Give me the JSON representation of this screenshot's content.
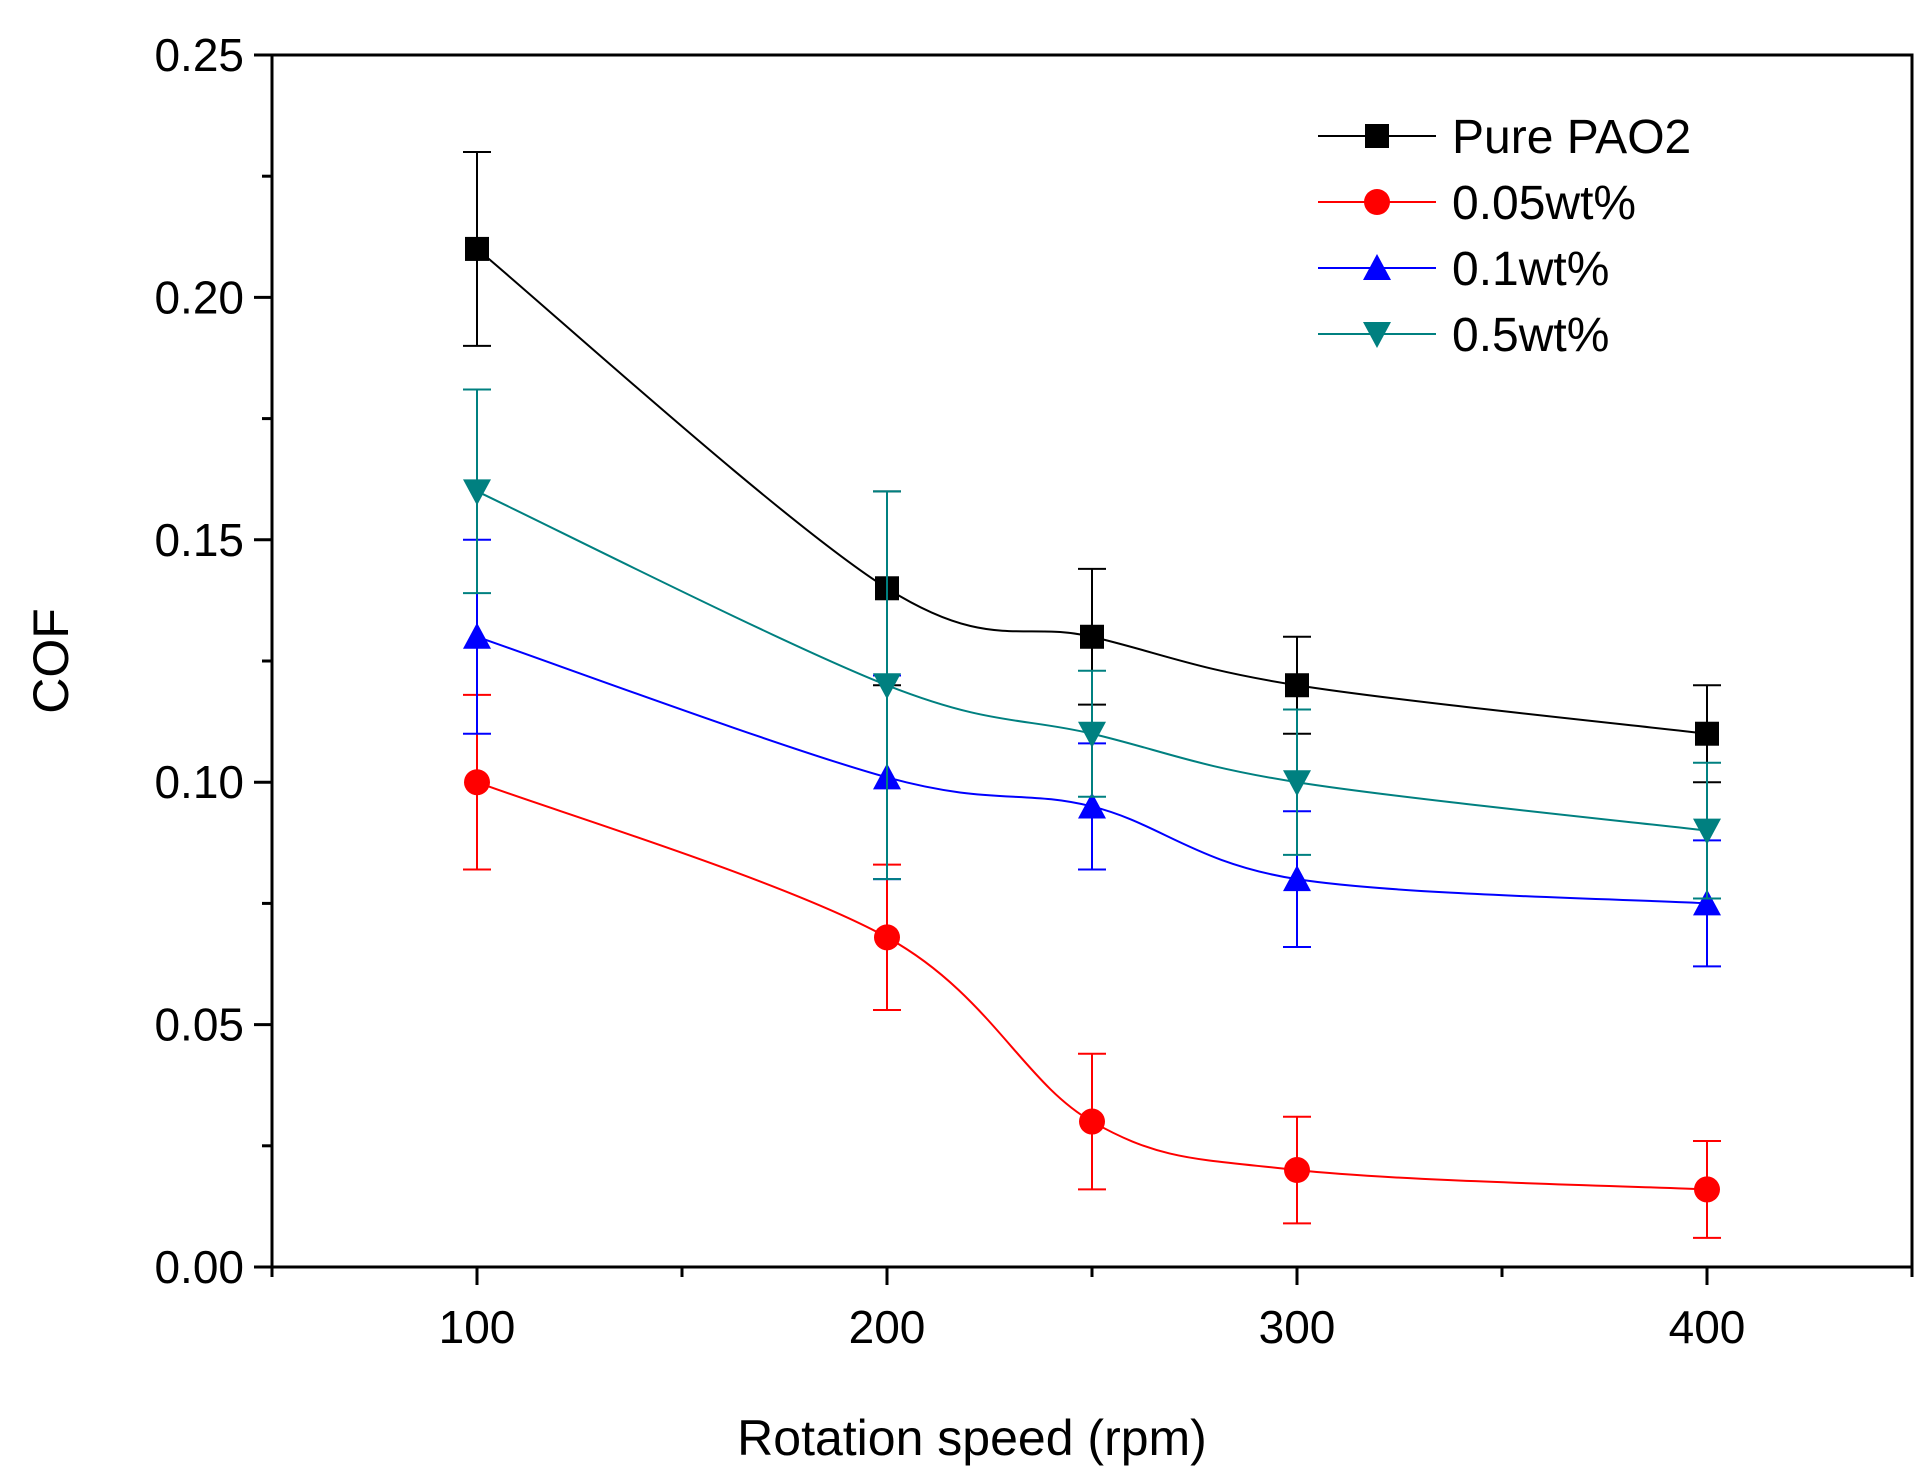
{
  "chart_data": {
    "type": "line",
    "title": "",
    "xlabel": "Rotation speed (rpm)",
    "ylabel": "COF",
    "xlim": [
      50,
      450
    ],
    "ylim": [
      0.0,
      0.25
    ],
    "x_major_ticks": [
      100,
      200,
      300,
      400
    ],
    "x_minor_ticks": [
      50,
      150,
      250,
      350,
      450
    ],
    "y_major_ticks": [
      0.0,
      0.05,
      0.1,
      0.15,
      0.2,
      0.25
    ],
    "x_tick_labels": [
      "100",
      "200",
      "300",
      "400"
    ],
    "y_tick_labels": [
      "0.00",
      "0.05",
      "0.10",
      "0.15",
      "0.20",
      "0.25"
    ],
    "grid": false,
    "legend_position": "top-right",
    "x": [
      100,
      200,
      250,
      300,
      400
    ],
    "series": [
      {
        "name": "Pure PAO2",
        "color": "#000000",
        "marker": "square",
        "values": [
          0.21,
          0.14,
          0.13,
          0.12,
          0.11
        ],
        "errors": [
          0.02,
          0.02,
          0.014,
          0.01,
          0.01
        ]
      },
      {
        "name": "0.05wt%",
        "color": "#ff0000",
        "marker": "circle",
        "values": [
          0.1,
          0.068,
          0.03,
          0.02,
          0.016
        ],
        "errors": [
          0.018,
          0.015,
          0.014,
          0.011,
          0.01
        ]
      },
      {
        "name": "0.1wt%",
        "color": "#0000ff",
        "marker": "triangle-up",
        "values": [
          0.13,
          0.101,
          0.095,
          0.08,
          0.075
        ],
        "errors": [
          0.02,
          0.021,
          0.013,
          0.014,
          0.013
        ]
      },
      {
        "name": "0.5wt%",
        "color": "#008080",
        "marker": "triangle-down",
        "values": [
          0.16,
          0.12,
          0.11,
          0.1,
          0.09
        ],
        "errors": [
          0.021,
          0.04,
          0.013,
          0.015,
          0.014
        ]
      }
    ]
  }
}
